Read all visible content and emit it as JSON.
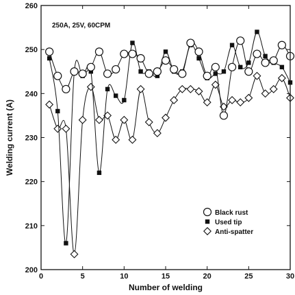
{
  "chart_data": {
    "type": "line",
    "annotation": "250A, 25V, 60CPM",
    "xlabel": "Number of welding",
    "ylabel": "Welding current (A)",
    "xlim": [
      0,
      30
    ],
    "ylim": [
      200,
      260
    ],
    "xticks": [
      0,
      5,
      10,
      15,
      20,
      25,
      30
    ],
    "yticks": [
      200,
      210,
      220,
      230,
      240,
      250,
      260
    ],
    "grid": false,
    "legend_position": "right",
    "x": [
      1,
      2,
      3,
      4,
      5,
      6,
      7,
      8,
      9,
      10,
      11,
      12,
      13,
      14,
      15,
      16,
      17,
      18,
      19,
      20,
      21,
      22,
      23,
      24,
      25,
      26,
      27,
      28,
      29,
      30
    ],
    "series": [
      {
        "name": "Black rust",
        "marker": "open-circle",
        "values": [
          249.5,
          244,
          241,
          245,
          244.5,
          246,
          249.5,
          244.5,
          245.5,
          249,
          249,
          248,
          244.5,
          245,
          247.5,
          245.5,
          244.5,
          251.5,
          249.5,
          244,
          246,
          235,
          246,
          252,
          245,
          249,
          247,
          247.5,
          251,
          248.5
        ]
      },
      {
        "name": "Used tip",
        "marker": "filled-square",
        "values": [
          248,
          236,
          206,
          245,
          244,
          245,
          222,
          241,
          239.5,
          238.5,
          251.5,
          245,
          245,
          244,
          249.5,
          245,
          245,
          251,
          248,
          243.5,
          244.5,
          245,
          251,
          246,
          247,
          254,
          248.5,
          247,
          246,
          242.5
        ]
      },
      {
        "name": "Anti-spatter",
        "marker": "open-diamond",
        "values": [
          237.5,
          232,
          232,
          203.5,
          234,
          241.5,
          234,
          235,
          229.5,
          234,
          229.5,
          241,
          233.5,
          231,
          234.5,
          238.5,
          241,
          241,
          240.5,
          238,
          242,
          237,
          238.5,
          238,
          239,
          244,
          240,
          241,
          243.5,
          239
        ]
      }
    ]
  }
}
